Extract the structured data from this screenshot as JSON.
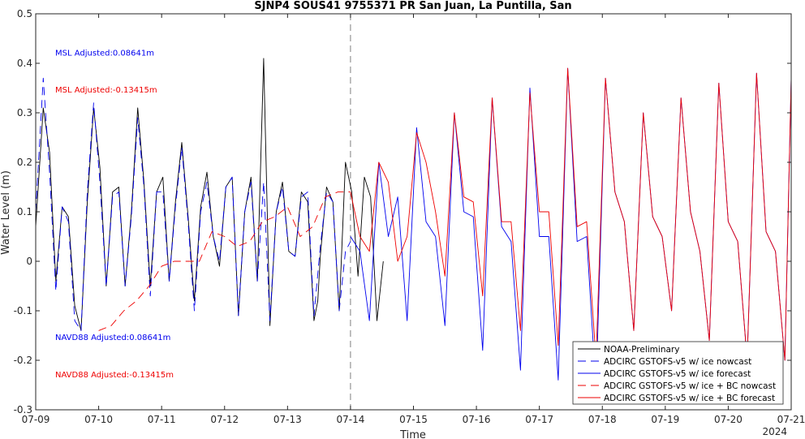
{
  "chart_data": {
    "type": "line",
    "title": "SJNP4 SOUS41 9755371 PR San Juan, La Puntilla, San",
    "xlabel": "Time",
    "ylabel": "Water Level (m)",
    "x_tick_labels": [
      "07-09",
      "07-10",
      "07-11",
      "07-12",
      "07-13",
      "07-14",
      "07-15",
      "07-16",
      "07-17",
      "07-18",
      "07-19",
      "07-20",
      "07-21"
    ],
    "x_year_label": "2024",
    "xlim": [
      "07-09",
      "07-21"
    ],
    "ylim": [
      -0.3,
      0.5
    ],
    "y_ticks": [
      "-0.3",
      "-0.2",
      "-0.1",
      "0",
      "0.1",
      "0.2",
      "0.3",
      "0.4",
      "0.5"
    ],
    "forecast_start": "07-14",
    "grid": false,
    "legend_position": "lower-right",
    "annotations": [
      {
        "text": "MSL Adjusted:0.08641m",
        "color": "#0000ee"
      },
      {
        "text": "MSL Adjusted:-0.13415m",
        "color": "#ee0000"
      },
      {
        "text": "NAVD88 Adjusted:0.08641m",
        "color": "#0000ee"
      },
      {
        "text": "NAVD88 Adjusted:-0.13415m",
        "color": "#ee0000"
      }
    ],
    "series": [
      {
        "name": "NOAA-Preliminary",
        "color": "#000000",
        "dash": "solid",
        "x_days": [
          0,
          0.12,
          0.22,
          0.32,
          0.42,
          0.52,
          0.62,
          0.72,
          0.82,
          0.92,
          1.02,
          1.12,
          1.22,
          1.32,
          1.42,
          1.52,
          1.62,
          1.72,
          1.82,
          1.92,
          2.02,
          2.12,
          2.22,
          2.32,
          2.42,
          2.52,
          2.62,
          2.72,
          2.82,
          2.92,
          3.02,
          3.12,
          3.22,
          3.32,
          3.42,
          3.52,
          3.62,
          3.72,
          3.82,
          3.92,
          4.02,
          4.12,
          4.22,
          4.32,
          4.42,
          4.48,
          4.52,
          4.62,
          4.72,
          4.82,
          4.92,
          5.02,
          5.12,
          5.22,
          5.32,
          5.42,
          5.52
        ],
        "y": [
          0.07,
          0.31,
          0.22,
          -0.04,
          0.11,
          0.09,
          -0.09,
          -0.14,
          0.12,
          0.31,
          0.19,
          -0.05,
          0.14,
          0.15,
          -0.05,
          0.1,
          0.31,
          0.16,
          -0.05,
          0.14,
          0.17,
          -0.04,
          0.12,
          0.24,
          0.09,
          -0.08,
          0.11,
          0.18,
          0.05,
          -0.01,
          0.15,
          0.17,
          -0.11,
          0.1,
          0.17,
          -0.04,
          0.41,
          -0.13,
          0.1,
          0.16,
          0.02,
          0.01,
          0.14,
          0.12,
          -0.12,
          -0.08,
          0.01,
          0.15,
          0.12,
          -0.1,
          0.2,
          0.14,
          -0.03,
          0.17,
          0.13,
          -0.12,
          0.0
        ]
      },
      {
        "name": "ADCIRC GSTOFS-v5  w/ ice nowcast",
        "color": "#0000ee",
        "dash": "10,6",
        "x_days": [
          0,
          0.12,
          0.22,
          0.32,
          0.42,
          0.52,
          0.62,
          0.72,
          0.82,
          0.92,
          1.02,
          1.12,
          1.22,
          1.32,
          1.42,
          1.52,
          1.62,
          1.72,
          1.82,
          1.92,
          2.02,
          2.12,
          2.22,
          2.32,
          2.42,
          2.52,
          2.62,
          2.72,
          2.82,
          2.92,
          3.02,
          3.12,
          3.22,
          3.32,
          3.42,
          3.52,
          3.62,
          3.72,
          3.82,
          3.92,
          4.02,
          4.12,
          4.22,
          4.32,
          4.42,
          4.52,
          4.62,
          4.72,
          4.82,
          4.92,
          5.0
        ],
        "y": [
          0.1,
          0.37,
          0.18,
          -0.06,
          0.11,
          0.08,
          -0.12,
          -0.14,
          0.14,
          0.32,
          0.16,
          -0.05,
          0.13,
          0.14,
          -0.05,
          0.09,
          0.29,
          0.15,
          -0.07,
          0.14,
          0.14,
          -0.04,
          0.11,
          0.23,
          0.08,
          -0.1,
          0.1,
          0.16,
          0.05,
          0.0,
          0.15,
          0.17,
          -0.11,
          0.1,
          0.16,
          -0.04,
          0.16,
          -0.12,
          0.1,
          0.15,
          0.02,
          0.01,
          0.13,
          0.14,
          -0.11,
          0.03,
          0.14,
          0.12,
          -0.1,
          0.02,
          0.04
        ]
      },
      {
        "name": "ADCIRC GSTOFS-v5  w/ ice forecast",
        "color": "#0000ee",
        "dash": "solid",
        "x_days": [
          5.0,
          5.15,
          5.3,
          5.45,
          5.6,
          5.75,
          5.9,
          6.05,
          6.2,
          6.35,
          6.5,
          6.65,
          6.8,
          6.95,
          7.1,
          7.25,
          7.4,
          7.55,
          7.7,
          7.85,
          8.0,
          8.15,
          8.3,
          8.45,
          8.6,
          8.75,
          8.9,
          9.05,
          9.2,
          9.35,
          9.5,
          9.65,
          9.8,
          9.95,
          10.1,
          10.25,
          10.4,
          10.55,
          10.7,
          10.85,
          11.0,
          11.15,
          11.3,
          11.45,
          11.6,
          11.75,
          11.9,
          12.0
        ],
        "y": [
          0.05,
          0.02,
          -0.12,
          0.2,
          0.05,
          0.13,
          -0.12,
          0.27,
          0.08,
          0.05,
          -0.13,
          0.3,
          0.1,
          0.09,
          -0.18,
          0.33,
          0.07,
          0.04,
          -0.22,
          0.35,
          0.05,
          0.05,
          -0.24,
          0.39,
          0.04,
          0.05,
          -0.26,
          0.37,
          0.14,
          0.08,
          -0.14,
          0.3,
          0.09,
          0.05,
          -0.1,
          0.33,
          0.1,
          0.02,
          -0.16,
          0.36,
          0.08,
          0.04,
          -0.2,
          0.38,
          0.06,
          0.02,
          -0.2,
          0.37
        ]
      },
      {
        "name": "ADCIRC GSTOFS-v5  w/ ice + BC nowcast",
        "color": "#ee0000",
        "dash": "10,6",
        "x_days": [
          1.0,
          1.2,
          1.4,
          1.6,
          1.8,
          2.0,
          2.2,
          2.4,
          2.6,
          2.8,
          3.0,
          3.2,
          3.4,
          3.6,
          3.8,
          4.0,
          4.2,
          4.4,
          4.6,
          4.8,
          5.0
        ],
        "y": [
          -0.14,
          -0.13,
          -0.1,
          -0.08,
          -0.05,
          -0.01,
          0.0,
          0.0,
          0.0,
          0.06,
          0.05,
          0.03,
          0.04,
          0.08,
          0.09,
          0.11,
          0.05,
          0.07,
          0.13,
          0.14,
          0.14
        ]
      },
      {
        "name": "ADCIRC GSTOFS-v5  w/ ice + BC forecast",
        "color": "#ee0000",
        "dash": "solid",
        "x_days": [
          5.0,
          5.15,
          5.3,
          5.45,
          5.6,
          5.75,
          5.9,
          6.05,
          6.2,
          6.35,
          6.5,
          6.65,
          6.8,
          6.95,
          7.1,
          7.25,
          7.4,
          7.55,
          7.7,
          7.85,
          8.0,
          8.15,
          8.3,
          8.45,
          8.6,
          8.75,
          8.9,
          9.05,
          9.2,
          9.35,
          9.5,
          9.65,
          9.8,
          9.95,
          10.1,
          10.25,
          10.4,
          10.55,
          10.7,
          10.85,
          11.0,
          11.15,
          11.3,
          11.45,
          11.6,
          11.75,
          11.9,
          12.0
        ],
        "y": [
          0.14,
          0.05,
          0.02,
          0.2,
          0.16,
          0.0,
          0.05,
          0.26,
          0.2,
          0.1,
          -0.03,
          0.3,
          0.13,
          0.12,
          -0.07,
          0.33,
          0.08,
          0.08,
          -0.14,
          0.34,
          0.1,
          0.1,
          -0.17,
          0.39,
          0.07,
          0.08,
          -0.2,
          0.37,
          0.14,
          0.08,
          -0.14,
          0.3,
          0.09,
          0.05,
          -0.1,
          0.33,
          0.1,
          0.02,
          -0.16,
          0.36,
          0.08,
          0.04,
          -0.2,
          0.38,
          0.06,
          0.02,
          -0.2,
          0.37
        ]
      }
    ]
  }
}
